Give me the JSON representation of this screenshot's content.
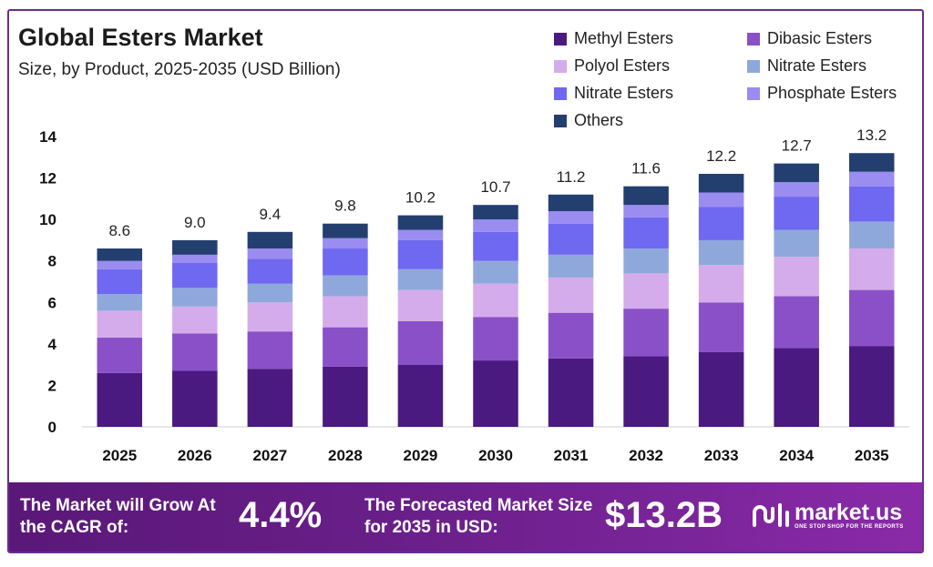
{
  "chart_data": {
    "type": "bar",
    "stacked": true,
    "title": "Global Esters Market",
    "subtitle": "Size, by Product, 2025-2035 (USD Billion)",
    "categories": [
      "2025",
      "2026",
      "2027",
      "2028",
      "2029",
      "2030",
      "2031",
      "2032",
      "2033",
      "2034",
      "2035"
    ],
    "totals": [
      8.6,
      9.0,
      9.4,
      9.8,
      10.2,
      10.7,
      11.2,
      11.6,
      12.2,
      12.7,
      13.2
    ],
    "total_labels": [
      "8.6",
      "9.0",
      "9.4",
      "9.8",
      "10.2",
      "10.7",
      "11.2",
      "11.6",
      "12.2",
      "12.7",
      "13.2"
    ],
    "ylim": [
      0,
      14
    ],
    "yticks": [
      0,
      2,
      4,
      6,
      8,
      10,
      12,
      14
    ],
    "legend_position": "top-right",
    "series": [
      {
        "name": "Methyl Esters",
        "color": "#4a1a80",
        "values": [
          2.6,
          2.7,
          2.8,
          2.9,
          3.0,
          3.2,
          3.3,
          3.4,
          3.6,
          3.8,
          3.9
        ]
      },
      {
        "name": "Dibasic Esters",
        "color": "#8a50c8",
        "values": [
          1.7,
          1.8,
          1.8,
          1.9,
          2.1,
          2.1,
          2.2,
          2.3,
          2.4,
          2.5,
          2.7
        ]
      },
      {
        "name": "Polyol Esters",
        "color": "#d4aceb",
        "values": [
          1.3,
          1.3,
          1.4,
          1.5,
          1.5,
          1.6,
          1.7,
          1.7,
          1.8,
          1.9,
          2.0
        ]
      },
      {
        "name": "Nitrate Esters",
        "color": "#8fa8dc",
        "values": [
          0.8,
          0.9,
          0.9,
          1.0,
          1.0,
          1.1,
          1.1,
          1.2,
          1.2,
          1.3,
          1.3
        ]
      },
      {
        "name": "Nitrate Esters",
        "color": "#6f68f0",
        "values": [
          1.2,
          1.2,
          1.2,
          1.3,
          1.4,
          1.4,
          1.5,
          1.5,
          1.6,
          1.6,
          1.7
        ]
      },
      {
        "name": "Phosphate Esters",
        "color": "#9a8cf0",
        "values": [
          0.4,
          0.4,
          0.5,
          0.5,
          0.5,
          0.6,
          0.6,
          0.6,
          0.7,
          0.7,
          0.7
        ]
      },
      {
        "name": "Others",
        "color": "#233f70",
        "values": [
          0.6,
          0.7,
          0.8,
          0.7,
          0.7,
          0.7,
          0.8,
          0.9,
          0.9,
          0.9,
          0.9
        ]
      }
    ]
  },
  "footer": {
    "cagr_label": "The Market will Grow At the CAGR of:",
    "cagr_value": "4.4%",
    "forecast_label": "The Forecasted Market Size for 2035 in USD:",
    "forecast_value": "$13.2B",
    "brand_name": "market.us",
    "brand_tagline": "ONE STOP SHOP FOR THE REPORTS"
  },
  "colors": {
    "footer_bg": "#5a1878",
    "frame_border": "#6b2d8f"
  }
}
